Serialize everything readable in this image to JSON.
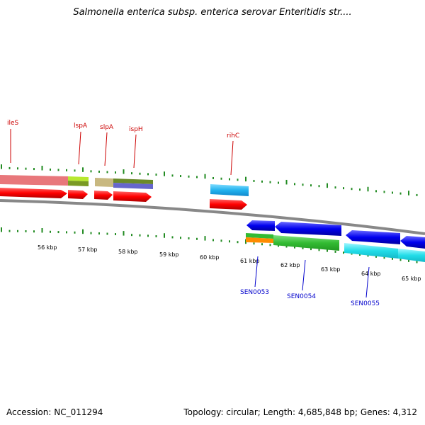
{
  "title": "Salmonella enterica subsp. enterica serovar Enteritidis str....",
  "tick_labels": [
    "56 kbp",
    "57 kbp",
    "58 kbp",
    "59 kbp",
    "60 kbp",
    "61 kbp",
    "62 kbp",
    "63 kbp",
    "64 kbp",
    "65 kbp"
  ],
  "gene_labels_top": [
    "ileS",
    "lspA",
    "slpA",
    "ispH",
    "rihC"
  ],
  "gene_labels_bottom": [
    "SEN0053",
    "SEN0054",
    "SEN0055"
  ],
  "footer": {
    "accession": "Accession: NC_011294",
    "summary": "Topology: circular; Length: 4,685,848 bp; Genes: 4,312"
  },
  "colors": {
    "cds_forward": "#ff0000",
    "cds_reverse": "#0000ee",
    "label_top": "#cc0000",
    "label_bottom": "#0000cc",
    "tick": "#228b22",
    "backbone": "#888888"
  }
}
